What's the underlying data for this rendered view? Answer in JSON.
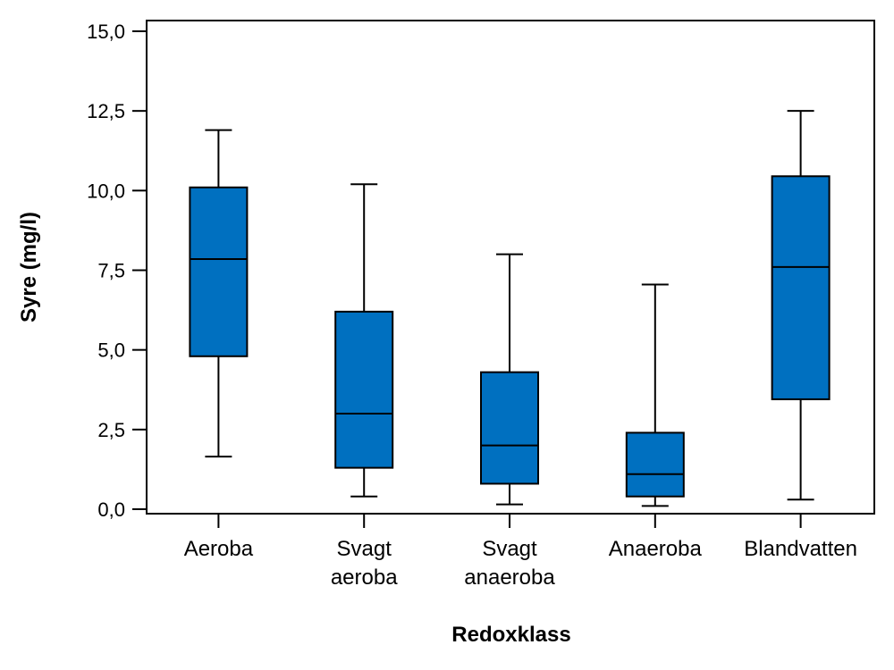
{
  "chart_data": {
    "type": "boxplot",
    "title": "",
    "xlabel": "Redoxklass",
    "ylabel": "Syre (mg/l)",
    "ylim": [
      0,
      15
    ],
    "yticks": [
      0,
      2.5,
      5,
      7.5,
      10,
      12.5,
      15
    ],
    "ytick_labels": [
      "0,0",
      "2,5",
      "5,0",
      "7,5",
      "10,0",
      "12,5",
      "15,0"
    ],
    "grid": false,
    "box_color": "#0070C0",
    "categories": [
      {
        "label_lines": [
          "Aeroba"
        ],
        "min": 1.65,
        "q1": 4.8,
        "median": 7.85,
        "q3": 10.1,
        "max": 11.9
      },
      {
        "label_lines": [
          "Svagt",
          "aeroba"
        ],
        "min": 0.4,
        "q1": 1.3,
        "median": 3.0,
        "q3": 6.2,
        "max": 10.2
      },
      {
        "label_lines": [
          "Svagt",
          "anaeroba"
        ],
        "min": 0.15,
        "q1": 0.8,
        "median": 2.0,
        "q3": 4.3,
        "max": 8.0
      },
      {
        "label_lines": [
          "Anaeroba"
        ],
        "min": 0.1,
        "q1": 0.4,
        "median": 1.1,
        "q3": 2.4,
        "max": 7.05
      },
      {
        "label_lines": [
          "Blandvatten"
        ],
        "min": 0.3,
        "q1": 3.45,
        "median": 7.6,
        "q3": 10.45,
        "max": 12.5
      }
    ]
  }
}
